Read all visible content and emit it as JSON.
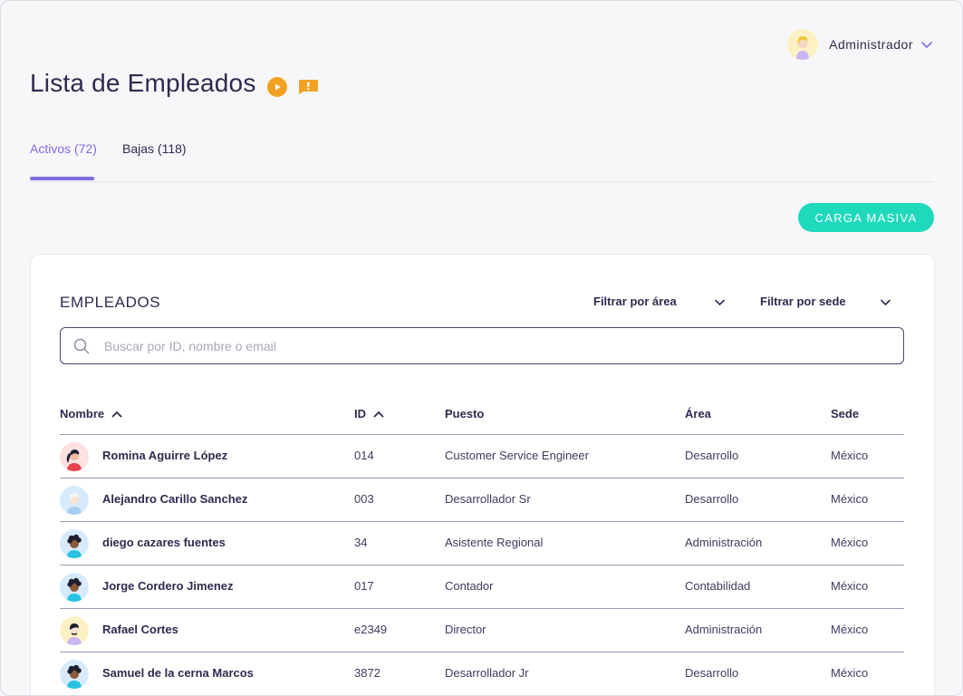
{
  "header": {
    "user_name": "Administrador",
    "page_title": "Lista de Empleados"
  },
  "tabs": [
    {
      "label": "Activos (72)",
      "active": true
    },
    {
      "label": "Bajas (118)",
      "active": false
    }
  ],
  "actions": {
    "carga_masiva_label": "CARGA MASIVA"
  },
  "card": {
    "title": "EMPLEADOS",
    "filter_area_label": "Filtrar por área",
    "filter_sede_label": "Filtrar por sede",
    "search_placeholder": "Buscar por ID, nombre o email"
  },
  "table": {
    "columns": [
      "Nombre",
      "ID",
      "Puesto",
      "Área",
      "Sede"
    ],
    "rows": [
      {
        "nombre": "Romina Aguirre López",
        "id": "014",
        "puesto": "Customer Service Engineer",
        "area": "Desarrollo",
        "sede": "México"
      },
      {
        "nombre": "Alejandro Carillo Sanchez",
        "id": "003",
        "puesto": "Desarrollador Sr",
        "area": "Desarrollo",
        "sede": "México"
      },
      {
        "nombre": "diego cazares fuentes",
        "id": "34",
        "puesto": "Asistente Regional",
        "area": "Administración",
        "sede": "México"
      },
      {
        "nombre": "Jorge Cordero Jimenez",
        "id": "017",
        "puesto": "Contador",
        "area": "Contabilidad",
        "sede": "México"
      },
      {
        "nombre": "Rafael Cortes",
        "id": "e2349",
        "puesto": "Director",
        "area": "Administración",
        "sede": "México"
      },
      {
        "nombre": "Samuel de la cerna Marcos",
        "id": "3872",
        "puesto": "Desarrollador Jr",
        "area": "Desarrollo",
        "sede": "México"
      }
    ]
  },
  "colors": {
    "accent_purple": "#7e6ee3",
    "teal_button": "#1fd9bd",
    "orange_icon": "#f2a223",
    "text_dark": "#2e2a4f"
  },
  "icons": [
    "user-avatar-icon",
    "chevron-down-icon",
    "play-icon",
    "alert-message-icon",
    "search-icon",
    "sort-asc-icon"
  ]
}
